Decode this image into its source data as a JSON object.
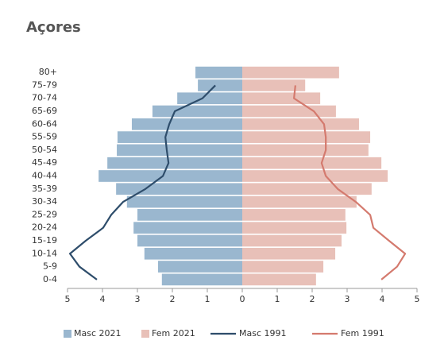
{
  "chart_data": {
    "type": "pyramid",
    "title": "Açores",
    "categories": [
      "80+",
      "75-79",
      "70-74",
      "65-69",
      "60-64",
      "55-59",
      "50-54",
      "45-49",
      "40-44",
      "35-39",
      "30-34",
      "25-29",
      "20-24",
      "15-19",
      "10-14",
      "5-9",
      "0-4"
    ],
    "series": [
      {
        "name": "Masc 2021",
        "color": "#9ab7cf",
        "side": "left",
        "style": "bar",
        "values": [
          1.34,
          1.27,
          1.86,
          2.57,
          3.16,
          3.57,
          3.59,
          3.86,
          4.11,
          3.61,
          3.3,
          3.0,
          3.11,
          3.0,
          2.8,
          2.41,
          2.3
        ]
      },
      {
        "name": "Fem 2021",
        "color": "#e8c0b8",
        "side": "right",
        "style": "bar",
        "values": [
          2.77,
          1.8,
          2.23,
          2.68,
          3.34,
          3.66,
          3.61,
          3.98,
          4.16,
          3.7,
          3.27,
          2.95,
          2.98,
          2.84,
          2.66,
          2.32,
          2.11
        ]
      },
      {
        "name": "Masc 1991",
        "color": "#2e4d6b",
        "side": "left",
        "style": "line",
        "values": [
          null,
          0.77,
          1.14,
          1.93,
          2.09,
          2.2,
          2.16,
          2.11,
          2.27,
          2.77,
          3.41,
          3.75,
          3.98,
          4.48,
          4.93,
          4.66,
          4.16
        ]
      },
      {
        "name": "Fem 1991",
        "color": "#d47a6e",
        "side": "right",
        "style": "line",
        "values": [
          null,
          1.52,
          1.48,
          2.05,
          2.34,
          2.39,
          2.39,
          2.27,
          2.39,
          2.73,
          3.25,
          3.66,
          3.75,
          4.2,
          4.66,
          4.43,
          3.98
        ]
      }
    ],
    "xlim": [
      -5,
      5
    ],
    "xticks": [
      {
        "value": -5,
        "label": "5"
      },
      {
        "value": -4,
        "label": "4"
      },
      {
        "value": -3,
        "label": "3"
      },
      {
        "value": -2,
        "label": "2"
      },
      {
        "value": -1,
        "label": "1"
      },
      0,
      1,
      2,
      3,
      4,
      5
    ]
  }
}
